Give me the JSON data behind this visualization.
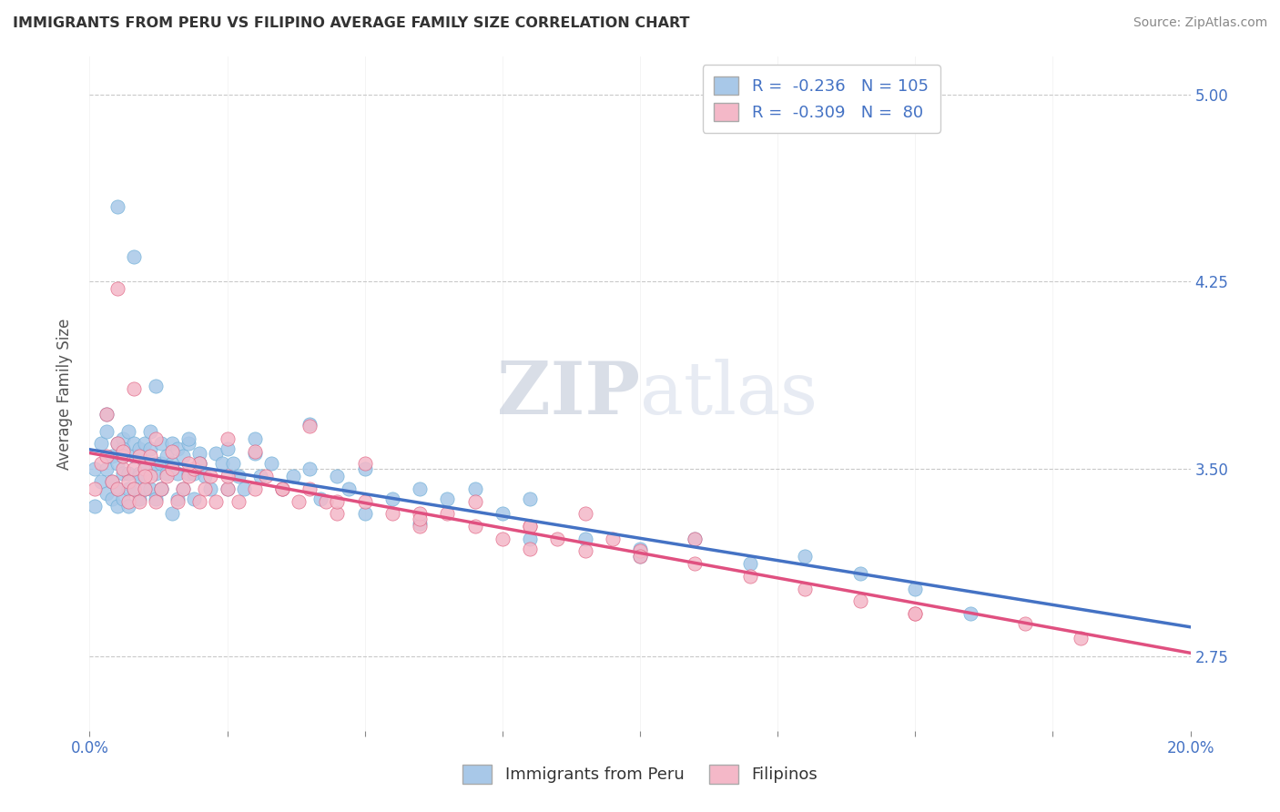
{
  "title": "IMMIGRANTS FROM PERU VS FILIPINO AVERAGE FAMILY SIZE CORRELATION CHART",
  "source": "Source: ZipAtlas.com",
  "ylabel": "Average Family Size",
  "xlim": [
    0.0,
    0.2
  ],
  "ylim": [
    2.45,
    5.15
  ],
  "yticks": [
    2.75,
    3.5,
    4.25,
    5.0
  ],
  "xticks": [
    0.0,
    0.025,
    0.05,
    0.075,
    0.1,
    0.125,
    0.15,
    0.175,
    0.2
  ],
  "xtick_labels_show": [
    "0.0%",
    "",
    "",
    "",
    "",
    "",
    "",
    "",
    "20.0%"
  ],
  "legend_label_1": "Immigrants from Peru",
  "legend_label_2": "Filipinos",
  "peru_color": "#a8c8e8",
  "peru_edge_color": "#6baed6",
  "filipino_color": "#f4b8c8",
  "filipino_edge_color": "#e06080",
  "peru_line_color": "#4472c4",
  "filipino_line_color": "#e05080",
  "watermark_ZIP": "ZIP",
  "watermark_atlas": "atlas",
  "tick_color": "#4472c4",
  "title_color": "#333333",
  "axis_label_color": "#555555",
  "source_color": "#888888",
  "peru_scatter_x": [
    0.001,
    0.001,
    0.002,
    0.002,
    0.003,
    0.003,
    0.003,
    0.004,
    0.004,
    0.004,
    0.005,
    0.005,
    0.005,
    0.005,
    0.006,
    0.006,
    0.006,
    0.006,
    0.007,
    0.007,
    0.007,
    0.007,
    0.008,
    0.008,
    0.008,
    0.009,
    0.009,
    0.009,
    0.01,
    0.01,
    0.01,
    0.01,
    0.011,
    0.011,
    0.011,
    0.012,
    0.012,
    0.012,
    0.013,
    0.013,
    0.013,
    0.014,
    0.014,
    0.015,
    0.015,
    0.015,
    0.016,
    0.016,
    0.017,
    0.017,
    0.018,
    0.018,
    0.019,
    0.019,
    0.02,
    0.02,
    0.021,
    0.022,
    0.023,
    0.024,
    0.025,
    0.026,
    0.027,
    0.028,
    0.03,
    0.031,
    0.033,
    0.035,
    0.037,
    0.04,
    0.042,
    0.045,
    0.047,
    0.05,
    0.055,
    0.06,
    0.065,
    0.07,
    0.075,
    0.08,
    0.09,
    0.1,
    0.11,
    0.12,
    0.13,
    0.14,
    0.15,
    0.16,
    0.003,
    0.006,
    0.009,
    0.013,
    0.016,
    0.02,
    0.025,
    0.03,
    0.04,
    0.05,
    0.06,
    0.08,
    0.1,
    0.005,
    0.008,
    0.012,
    0.018
  ],
  "peru_scatter_y": [
    3.5,
    3.35,
    3.6,
    3.45,
    3.65,
    3.5,
    3.4,
    3.55,
    3.45,
    3.38,
    3.52,
    3.6,
    3.42,
    3.35,
    3.55,
    3.48,
    3.38,
    3.62,
    3.65,
    3.48,
    3.35,
    3.42,
    3.55,
    3.42,
    3.6,
    3.58,
    3.38,
    3.48,
    3.48,
    3.6,
    3.52,
    3.42,
    3.42,
    3.58,
    3.65,
    3.48,
    3.52,
    3.38,
    3.6,
    3.42,
    3.52,
    3.55,
    3.48,
    3.52,
    3.32,
    3.6,
    3.48,
    3.58,
    3.55,
    3.42,
    3.6,
    3.48,
    3.48,
    3.38,
    3.56,
    3.52,
    3.47,
    3.42,
    3.56,
    3.52,
    3.42,
    3.52,
    3.47,
    3.42,
    3.56,
    3.47,
    3.52,
    3.42,
    3.47,
    3.5,
    3.38,
    3.47,
    3.42,
    3.5,
    3.38,
    3.42,
    3.38,
    3.42,
    3.32,
    3.38,
    3.22,
    3.15,
    3.22,
    3.12,
    3.15,
    3.08,
    3.02,
    2.92,
    3.72,
    3.58,
    3.47,
    3.42,
    3.38,
    3.52,
    3.58,
    3.62,
    3.68,
    3.32,
    3.28,
    3.22,
    3.18,
    4.55,
    4.35,
    3.83,
    3.62
  ],
  "filipino_scatter_x": [
    0.001,
    0.002,
    0.003,
    0.004,
    0.005,
    0.005,
    0.006,
    0.006,
    0.007,
    0.007,
    0.008,
    0.008,
    0.009,
    0.009,
    0.01,
    0.01,
    0.011,
    0.011,
    0.012,
    0.013,
    0.014,
    0.015,
    0.016,
    0.017,
    0.018,
    0.019,
    0.02,
    0.021,
    0.022,
    0.023,
    0.025,
    0.027,
    0.03,
    0.032,
    0.035,
    0.038,
    0.04,
    0.043,
    0.045,
    0.05,
    0.055,
    0.06,
    0.065,
    0.07,
    0.075,
    0.08,
    0.085,
    0.09,
    0.095,
    0.1,
    0.11,
    0.12,
    0.13,
    0.14,
    0.15,
    0.003,
    0.006,
    0.01,
    0.015,
    0.02,
    0.025,
    0.03,
    0.04,
    0.05,
    0.07,
    0.09,
    0.11,
    0.005,
    0.008,
    0.012,
    0.018,
    0.025,
    0.035,
    0.045,
    0.06,
    0.08,
    0.15,
    0.1,
    0.06,
    0.08,
    0.17,
    0.18
  ],
  "filipino_scatter_y": [
    3.42,
    3.52,
    3.55,
    3.45,
    3.6,
    3.42,
    3.5,
    3.55,
    3.45,
    3.37,
    3.5,
    3.42,
    3.55,
    3.37,
    3.5,
    3.42,
    3.47,
    3.55,
    3.37,
    3.42,
    3.47,
    3.5,
    3.37,
    3.42,
    3.47,
    3.5,
    3.37,
    3.42,
    3.47,
    3.37,
    3.42,
    3.37,
    3.42,
    3.47,
    3.42,
    3.37,
    3.42,
    3.37,
    3.32,
    3.37,
    3.32,
    3.27,
    3.32,
    3.27,
    3.22,
    3.27,
    3.22,
    3.17,
    3.22,
    3.17,
    3.12,
    3.07,
    3.02,
    2.97,
    2.92,
    3.72,
    3.57,
    3.47,
    3.57,
    3.52,
    3.62,
    3.57,
    3.67,
    3.52,
    3.37,
    3.32,
    3.22,
    4.22,
    3.82,
    3.62,
    3.52,
    3.47,
    3.42,
    3.37,
    3.32,
    3.27,
    2.92,
    3.15,
    3.3,
    3.18,
    2.88,
    2.82
  ]
}
